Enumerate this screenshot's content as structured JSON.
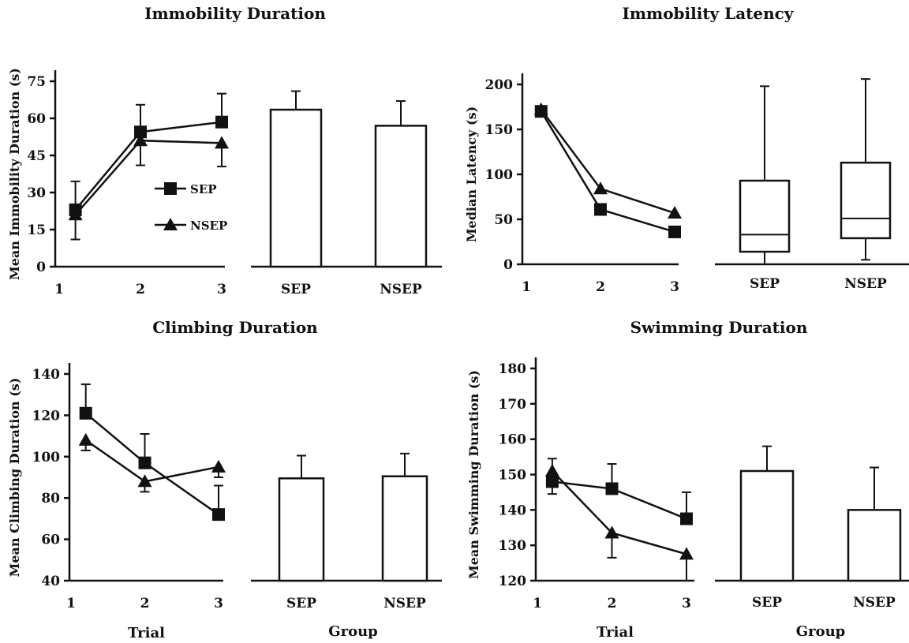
{
  "panels": [
    {
      "title": "Immobility Duration",
      "line": {
        "ylabel": "Mean Immobility Duration (s)",
        "xlabel": "",
        "ylim": [
          0,
          75
        ],
        "yticks": [
          0,
          15,
          30,
          45,
          60,
          75
        ],
        "xticks": [
          1,
          2,
          3
        ],
        "series": [
          {
            "name": "SEP",
            "marker": "square",
            "x": [
              1.2,
              2,
              3
            ],
            "y": [
              23,
              54.5,
              58.5
            ],
            "err_up": [
              11.5,
              11,
              11.5
            ],
            "err_down": [
              0,
              0,
              0
            ]
          },
          {
            "name": "NSEP",
            "marker": "triangle",
            "x": [
              1.2,
              2,
              3
            ],
            "y": [
              21,
              51,
              50
            ],
            "err_up": [
              0,
              0,
              0
            ],
            "err_down": [
              10,
              10,
              9.5
            ]
          }
        ],
        "legend": true
      },
      "group": {
        "type": "bar",
        "xlabel": "",
        "categories": [
          "SEP",
          "NSEP"
        ],
        "values": [
          63.5,
          57
        ],
        "err": [
          7.5,
          10
        ]
      }
    },
    {
      "title": "Immobility Latency",
      "line": {
        "ylabel": "Median Latency (s)",
        "xlabel": "",
        "ylim": [
          0,
          200
        ],
        "yticks": [
          0,
          50,
          100,
          150,
          200
        ],
        "xticks": [
          1,
          2,
          3
        ],
        "series": [
          {
            "name": "SEP",
            "marker": "square",
            "x": [
              1.2,
              2,
              3
            ],
            "y": [
              170,
              61,
              36
            ],
            "err_up": [
              0,
              0,
              0
            ],
            "err_down": [
              0,
              0,
              0
            ]
          },
          {
            "name": "NSEP",
            "marker": "triangle",
            "x": [
              1.2,
              2,
              3
            ],
            "y": [
              172,
              84,
              57
            ],
            "err_up": [
              0,
              0,
              0
            ],
            "err_down": [
              0,
              0,
              0
            ]
          }
        ],
        "legend": false
      },
      "group": {
        "type": "box",
        "xlabel": "",
        "categories": [
          "SEP",
          "NSEP"
        ],
        "boxes": [
          {
            "min": 0,
            "q1": 14,
            "median": 33,
            "q3": 93,
            "max": 198
          },
          {
            "min": 5,
            "q1": 29,
            "median": 51,
            "q3": 113,
            "max": 206
          }
        ]
      }
    },
    {
      "title": "Climbing Duration",
      "line": {
        "ylabel": "Mean Climbing Duration (s)",
        "xlabel": "Trial",
        "ylim": [
          40,
          140
        ],
        "yticks": [
          40,
          60,
          80,
          100,
          120,
          140
        ],
        "xticks": [
          1,
          2,
          3
        ],
        "series": [
          {
            "name": "SEP",
            "marker": "square",
            "x": [
              1.2,
              2,
              3
            ],
            "y": [
              121,
              97,
              72
            ],
            "err_up": [
              14,
              14,
              14
            ],
            "err_down": [
              0,
              0,
              0
            ]
          },
          {
            "name": "NSEP",
            "marker": "triangle",
            "x": [
              1.2,
              2,
              3
            ],
            "y": [
              108,
              88,
              95
            ],
            "err_up": [
              0,
              0,
              0
            ],
            "err_down": [
              5,
              5,
              5
            ]
          }
        ],
        "legend": false
      },
      "group": {
        "type": "bar",
        "xlabel": "Group",
        "categories": [
          "SEP",
          "NSEP"
        ],
        "values": [
          89.5,
          90.5
        ],
        "err": [
          11,
          11
        ]
      }
    },
    {
      "title": "Swimming Duration",
      "line": {
        "ylabel": "Mean Swimming Duration (s)",
        "xlabel": "Trial",
        "ylim": [
          120,
          180
        ],
        "yticks": [
          120,
          130,
          140,
          150,
          160,
          170,
          180
        ],
        "xticks": [
          1,
          2,
          3
        ],
        "series": [
          {
            "name": "SEP",
            "marker": "square",
            "x": [
              1.2,
              2,
              3
            ],
            "y": [
              148,
              146,
              137.5
            ],
            "err_up": [
              6.5,
              7,
              7.5
            ],
            "err_down": [
              0,
              0,
              0
            ]
          },
          {
            "name": "NSEP",
            "marker": "triangle",
            "x": [
              1.2,
              2,
              3
            ],
            "y": [
              151,
              133.5,
              127.5
            ],
            "err_up": [
              0,
              0,
              0
            ],
            "err_down": [
              6.5,
              7,
              7.5
            ]
          }
        ],
        "legend": false
      },
      "group": {
        "type": "bar",
        "xlabel": "Group",
        "categories": [
          "SEP",
          "NSEP"
        ],
        "values": [
          151,
          140
        ],
        "err": [
          7,
          12
        ]
      }
    }
  ],
  "chart_data": [
    {
      "type": "line",
      "title": "Immobility Duration",
      "xlabel": "",
      "ylabel": "Mean Immobility Duration (s)",
      "x": [
        1,
        2,
        3
      ],
      "ylim": [
        0,
        75
      ],
      "series": [
        {
          "name": "SEP",
          "values": [
            23,
            54.5,
            58.5
          ]
        },
        {
          "name": "NSEP",
          "values": [
            21,
            51,
            50
          ]
        }
      ]
    },
    {
      "type": "bar",
      "title": "Immobility Duration",
      "categories": [
        "SEP",
        "NSEP"
      ],
      "values": [
        63.5,
        57
      ],
      "ylim": [
        0,
        75
      ]
    },
    {
      "type": "line",
      "title": "Immobility Latency",
      "xlabel": "",
      "ylabel": "Median Latency (s)",
      "x": [
        1,
        2,
        3
      ],
      "ylim": [
        0,
        200
      ],
      "series": [
        {
          "name": "SEP",
          "values": [
            170,
            61,
            36
          ]
        },
        {
          "name": "NSEP",
          "values": [
            172,
            84,
            57
          ]
        }
      ]
    },
    {
      "type": "box",
      "title": "Immobility Latency",
      "categories": [
        "SEP",
        "NSEP"
      ],
      "boxes": [
        {
          "min": 0,
          "q1": 14,
          "median": 33,
          "q3": 93,
          "max": 198
        },
        {
          "min": 5,
          "q1": 29,
          "median": 51,
          "q3": 113,
          "max": 206
        }
      ]
    },
    {
      "type": "line",
      "title": "Climbing Duration",
      "xlabel": "Trial",
      "ylabel": "Mean Climbing Duration (s)",
      "x": [
        1,
        2,
        3
      ],
      "ylim": [
        40,
        140
      ],
      "series": [
        {
          "name": "SEP",
          "values": [
            121,
            97,
            72
          ]
        },
        {
          "name": "NSEP",
          "values": [
            108,
            88,
            95
          ]
        }
      ]
    },
    {
      "type": "bar",
      "title": "Climbing Duration",
      "xlabel": "Group",
      "categories": [
        "SEP",
        "NSEP"
      ],
      "values": [
        89.5,
        90.5
      ],
      "ylim": [
        40,
        140
      ]
    },
    {
      "type": "line",
      "title": "Swimming Duration",
      "xlabel": "Trial",
      "ylabel": "Mean Swimming Duration (s)",
      "x": [
        1,
        2,
        3
      ],
      "ylim": [
        120,
        180
      ],
      "series": [
        {
          "name": "SEP",
          "values": [
            148,
            146,
            137.5
          ]
        },
        {
          "name": "NSEP",
          "values": [
            151,
            133.5,
            127.5
          ]
        }
      ]
    },
    {
      "type": "bar",
      "title": "Swimming Duration",
      "xlabel": "Group",
      "categories": [
        "SEP",
        "NSEP"
      ],
      "values": [
        151,
        140
      ],
      "ylim": [
        120,
        180
      ]
    }
  ]
}
